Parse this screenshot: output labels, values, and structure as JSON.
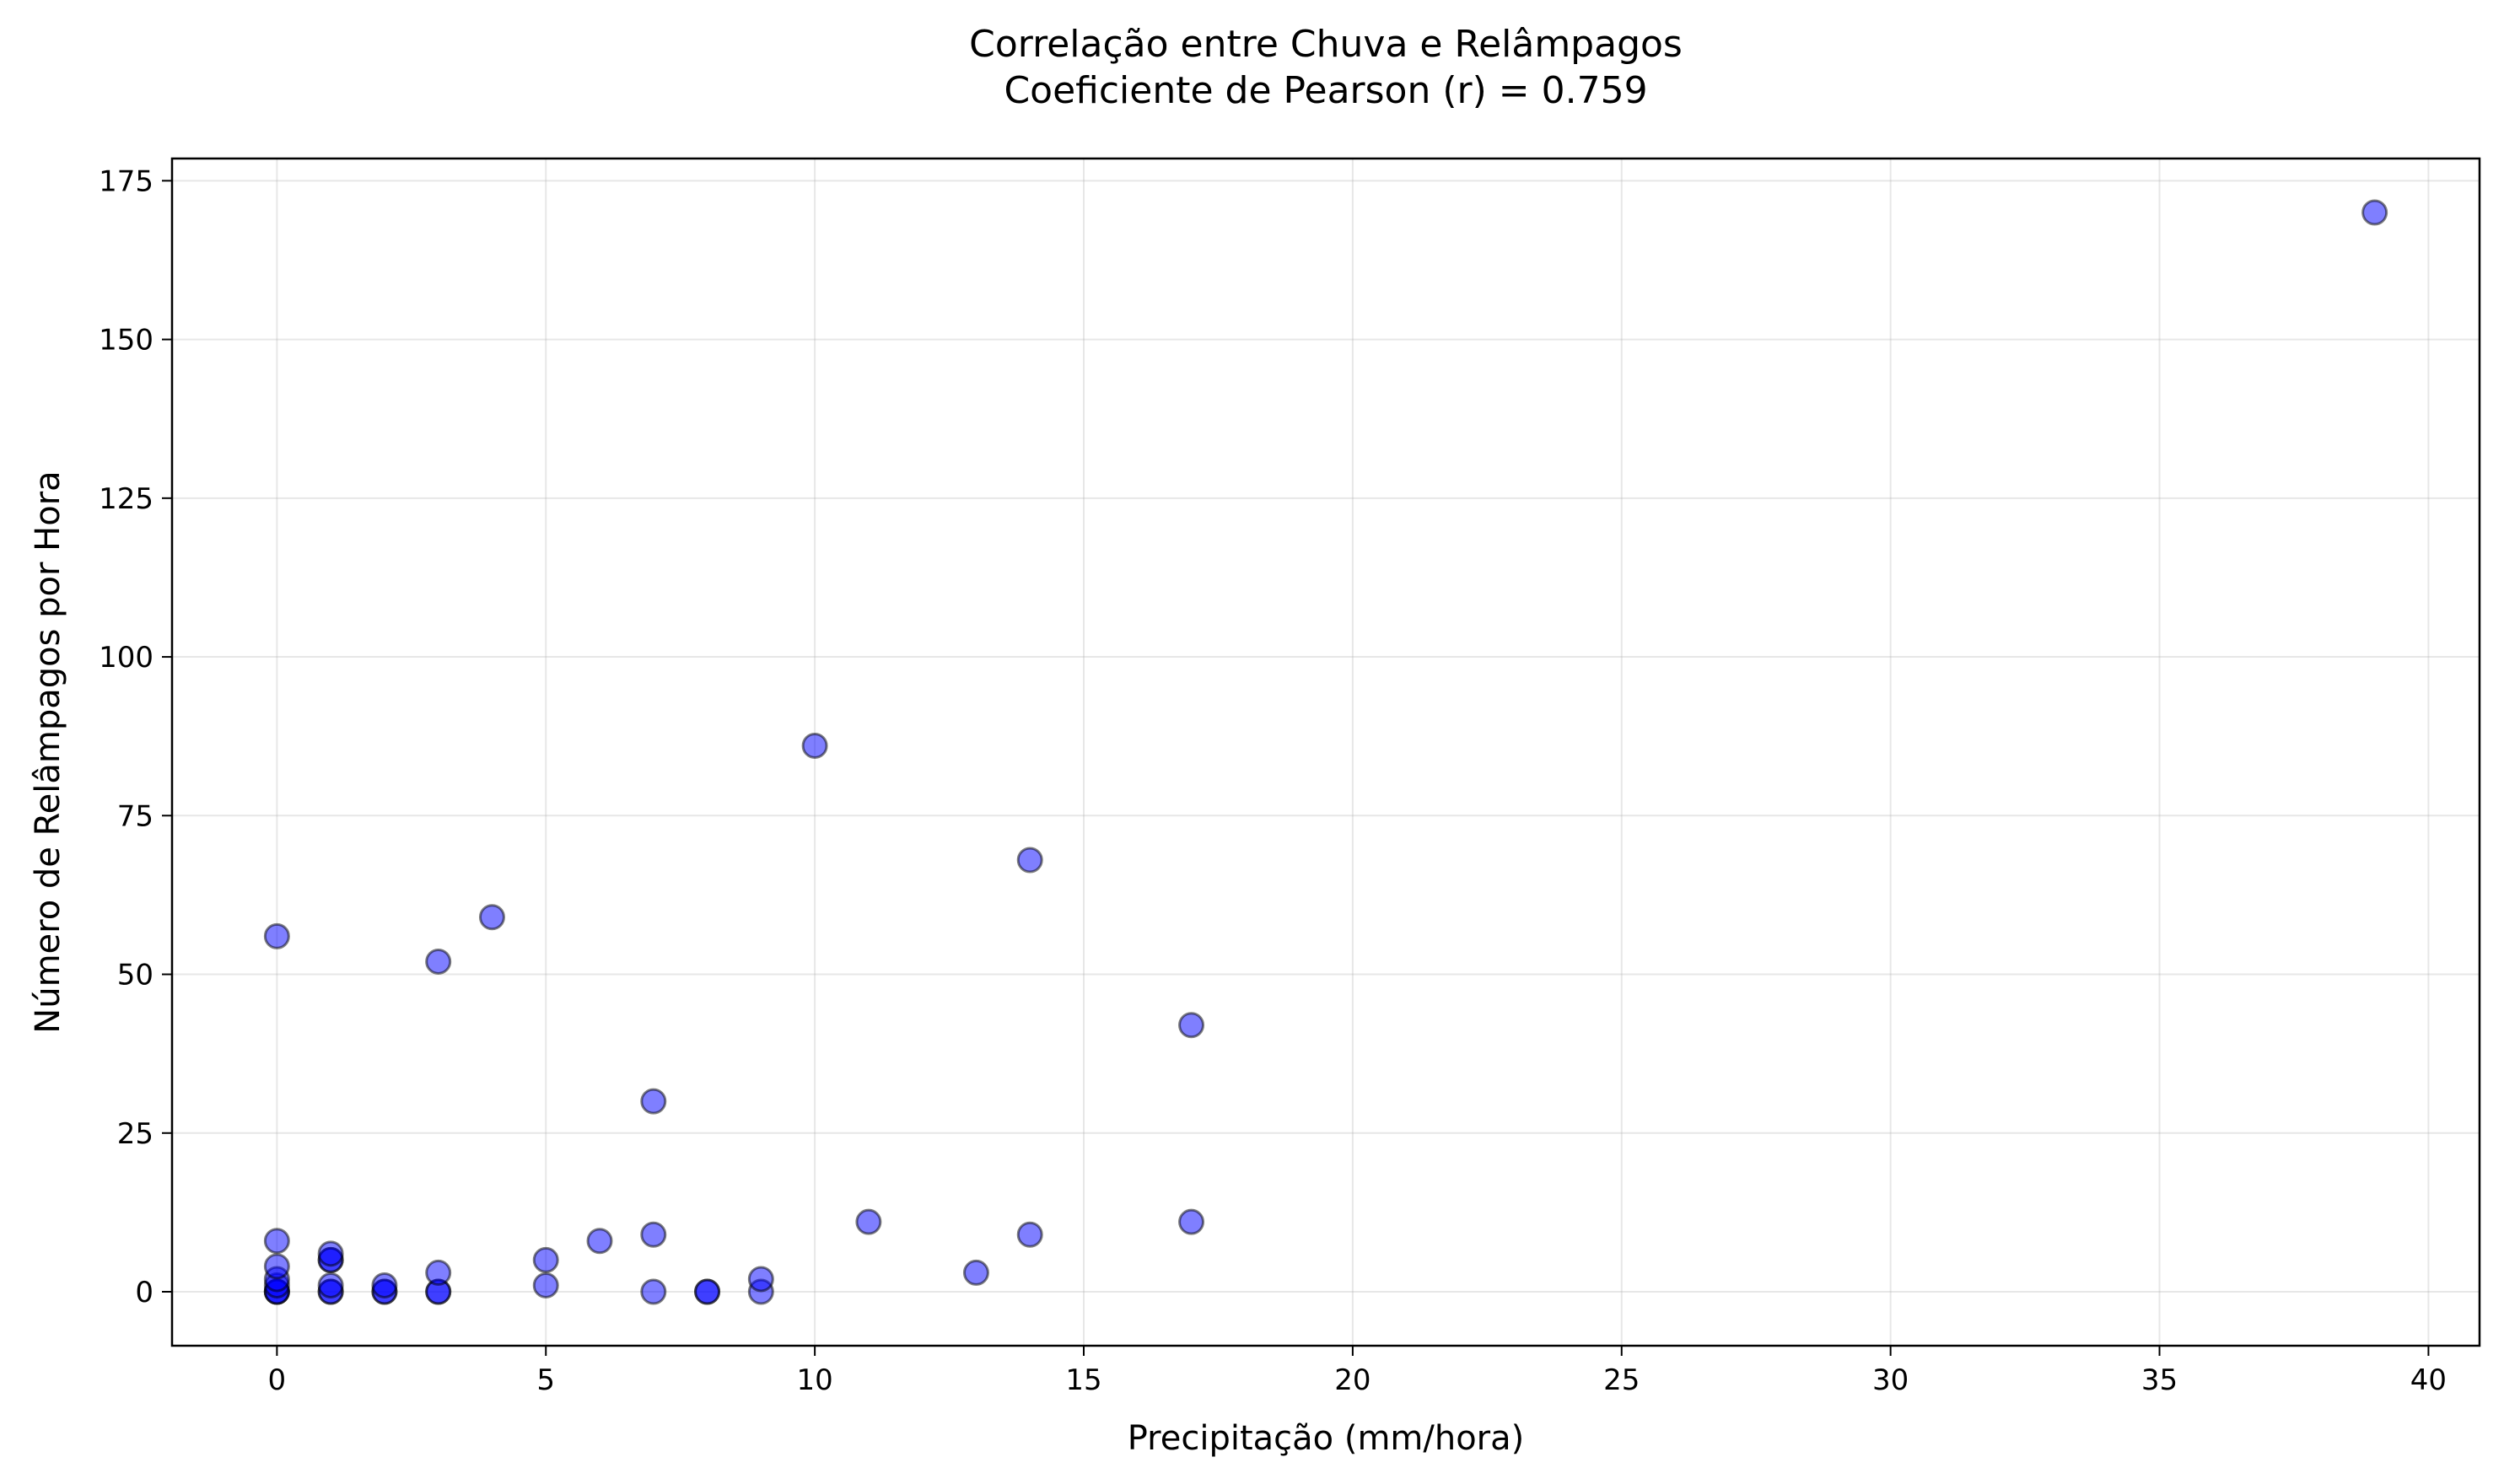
{
  "chart_data": {
    "type": "scatter",
    "title": "Correlação entre Chuva e Relâmpagos",
    "subtitle": "Coeficiente de Pearson (r) = 0.759",
    "xlabel": "Precipitação (mm/hora)",
    "ylabel": "Número de Relâmpagos por Hora",
    "xlim": [
      -1.95,
      40.95
    ],
    "ylim": [
      -8.5,
      178.5
    ],
    "xticks": [
      0,
      5,
      10,
      15,
      20,
      25,
      30,
      35,
      40
    ],
    "yticks": [
      0,
      25,
      50,
      75,
      100,
      125,
      150,
      175
    ],
    "grid": true,
    "marker_color": "#0000ff",
    "points": [
      {
        "x": 0,
        "y": 0
      },
      {
        "x": 0,
        "y": 0
      },
      {
        "x": 0,
        "y": 0
      },
      {
        "x": 0,
        "y": 1
      },
      {
        "x": 0,
        "y": 2
      },
      {
        "x": 0,
        "y": 4
      },
      {
        "x": 0,
        "y": 8
      },
      {
        "x": 0,
        "y": 56
      },
      {
        "x": 1,
        "y": 0
      },
      {
        "x": 1,
        "y": 0
      },
      {
        "x": 1,
        "y": 1
      },
      {
        "x": 1,
        "y": 5
      },
      {
        "x": 1,
        "y": 5
      },
      {
        "x": 1,
        "y": 6
      },
      {
        "x": 2,
        "y": 0
      },
      {
        "x": 2,
        "y": 0
      },
      {
        "x": 2,
        "y": 1
      },
      {
        "x": 3,
        "y": 0
      },
      {
        "x": 3,
        "y": 0
      },
      {
        "x": 3,
        "y": 3
      },
      {
        "x": 3,
        "y": 52
      },
      {
        "x": 4,
        "y": 59
      },
      {
        "x": 5,
        "y": 1
      },
      {
        "x": 5,
        "y": 5
      },
      {
        "x": 6,
        "y": 8
      },
      {
        "x": 7,
        "y": 0
      },
      {
        "x": 7,
        "y": 9
      },
      {
        "x": 7,
        "y": 30
      },
      {
        "x": 8,
        "y": 0
      },
      {
        "x": 8,
        "y": 0
      },
      {
        "x": 9,
        "y": 0
      },
      {
        "x": 9,
        "y": 2
      },
      {
        "x": 10,
        "y": 86
      },
      {
        "x": 11,
        "y": 11
      },
      {
        "x": 13,
        "y": 3
      },
      {
        "x": 14,
        "y": 9
      },
      {
        "x": 14,
        "y": 68
      },
      {
        "x": 17,
        "y": 11
      },
      {
        "x": 17,
        "y": 42
      },
      {
        "x": 39,
        "y": 170
      }
    ]
  }
}
